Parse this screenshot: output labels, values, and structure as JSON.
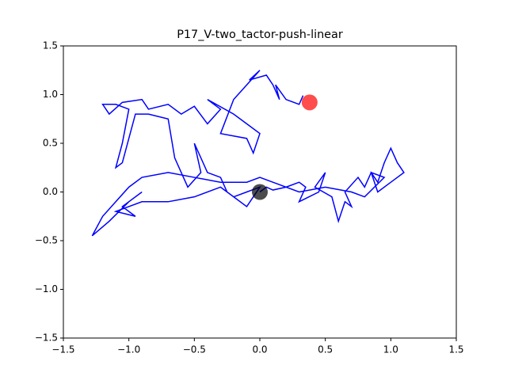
{
  "chart_data": {
    "type": "line",
    "title": "P17_V-two_tactor-push-linear",
    "xlim": [
      -1.5,
      1.5
    ],
    "ylim": [
      -1.5,
      1.5
    ],
    "xticks": [
      {
        "value": -1.5,
        "label": "−1.5"
      },
      {
        "value": -1.0,
        "label": "−1.0"
      },
      {
        "value": -0.5,
        "label": "−0.5"
      },
      {
        "value": 0,
        "label": "0.0"
      },
      0.5,
      {
        "value": 1,
        "label": "1.0"
      },
      1.5
    ],
    "yticks": [
      {
        "value": -1.5,
        "label": "−1.5"
      },
      {
        "value": -1.0,
        "label": "−1.0"
      },
      {
        "value": -0.5,
        "label": "−0.5"
      },
      {
        "value": 0,
        "label": "0.0"
      },
      0.5,
      {
        "value": 1,
        "label": "1.0"
      },
      1.5
    ],
    "series": [
      {
        "color": "#0000ff",
        "x": [
          0,
          0.05,
          0.1,
          0.2,
          0.3,
          0.35,
          0.3,
          0.45,
          0.5,
          0.42,
          0.55,
          0.6,
          0.65,
          0.7,
          0.65,
          0.75,
          0.8,
          0.85,
          0.9,
          0.95,
          1.0,
          1.05,
          1.1,
          1.0,
          0.9,
          0.85,
          0.95,
          0.8,
          0.7,
          0.5,
          0.3,
          0.1,
          0.0,
          -0.1,
          -0.3,
          -0.5,
          -0.7,
          -0.9,
          -1.0,
          -1.1,
          -1.2,
          -1.28,
          -1.15,
          -1.0,
          -0.9,
          -1.05,
          -0.95,
          -1.1,
          -0.9,
          -0.7,
          -0.5,
          -0.3,
          -0.2,
          -0.1,
          0.0,
          -0.05,
          -0.1,
          -0.25,
          -0.3,
          -0.4,
          -0.5,
          -0.45,
          -0.55,
          -0.6,
          -0.65,
          -0.7,
          -0.85,
          -0.95,
          -1.0,
          -1.05,
          -1.1,
          -1.05,
          -1.0,
          -1.1,
          -1.2,
          -1.15,
          -1.05,
          -0.9,
          -0.85,
          -0.7,
          -0.6,
          -0.5,
          -0.4,
          -0.3,
          -0.4,
          -0.2,
          -0.1,
          0.0,
          -0.05,
          -0.1,
          -0.3,
          -0.2,
          -0.1,
          0.0,
          -0.08,
          0.05,
          0.1,
          0.15,
          0.12,
          0.2,
          0.3,
          0.33
        ],
        "values": [
          0,
          0.05,
          0.02,
          0.05,
          0.1,
          0.05,
          -0.1,
          0.0,
          0.2,
          0.05,
          -0.05,
          -0.3,
          -0.1,
          -0.15,
          0.0,
          0.15,
          0.05,
          0.2,
          0.1,
          0.3,
          0.45,
          0.3,
          0.2,
          0.1,
          0.0,
          0.2,
          0.15,
          -0.05,
          0.0,
          0.05,
          0.0,
          0.1,
          0.15,
          0.1,
          0.1,
          0.15,
          0.2,
          0.15,
          0.05,
          -0.1,
          -0.25,
          -0.45,
          -0.3,
          -0.1,
          0.0,
          -0.15,
          -0.25,
          -0.2,
          -0.1,
          -0.1,
          -0.05,
          0.05,
          -0.05,
          0.0,
          0.05,
          -0.05,
          -0.15,
          0.0,
          0.15,
          0.2,
          0.5,
          0.2,
          0.05,
          0.2,
          0.35,
          0.75,
          0.8,
          0.8,
          0.55,
          0.3,
          0.25,
          0.5,
          0.85,
          0.9,
          0.9,
          0.8,
          0.92,
          0.95,
          0.85,
          0.9,
          0.8,
          0.88,
          0.7,
          0.85,
          0.95,
          0.8,
          0.7,
          0.6,
          0.4,
          0.55,
          0.6,
          0.95,
          1.1,
          1.25,
          1.15,
          1.2,
          1.1,
          0.95,
          1.1,
          0.95,
          0.9,
          0.99
        ]
      }
    ],
    "markers": [
      {
        "x": 0,
        "y": 0,
        "color": "#000000"
      },
      {
        "x": 0.38,
        "y": 0.92,
        "color": "#ff0000"
      }
    ]
  }
}
